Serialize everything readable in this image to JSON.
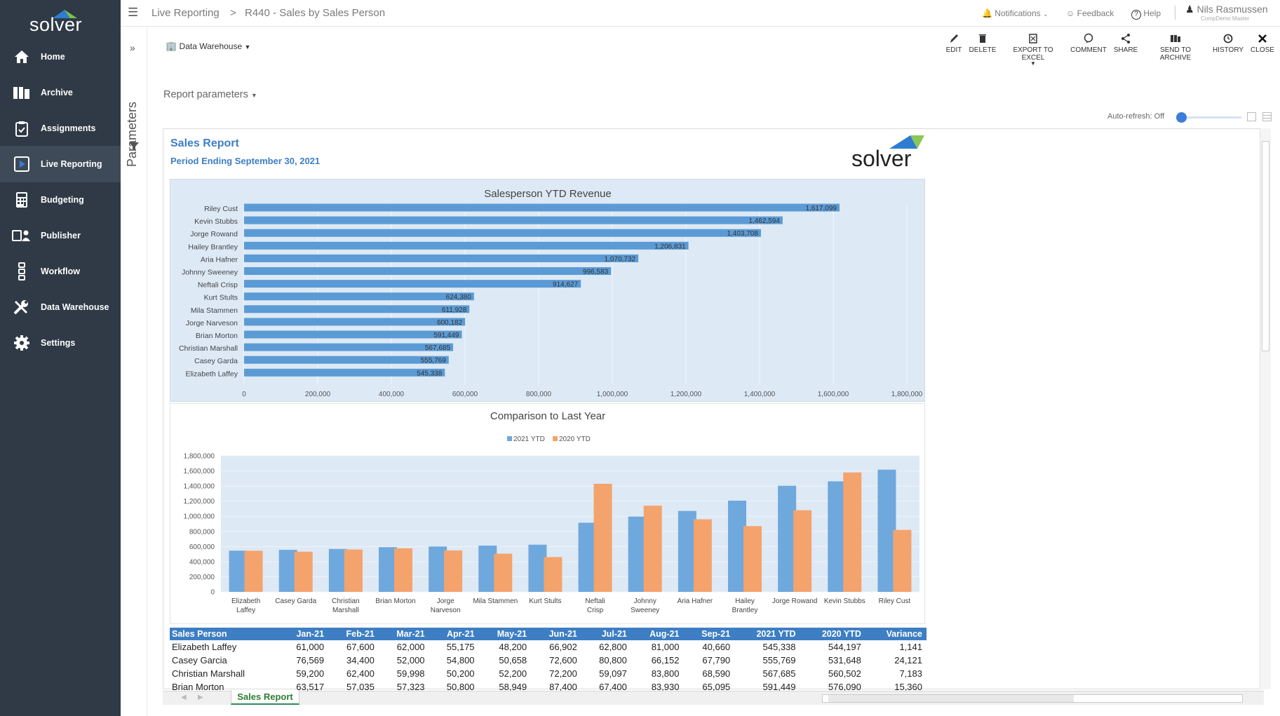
{
  "sidebar": {
    "brand": "solver",
    "items": [
      {
        "label": "Home",
        "icon": "home-icon",
        "active": false
      },
      {
        "label": "Archive",
        "icon": "archive-icon",
        "active": false
      },
      {
        "label": "Assignments",
        "icon": "clipboard-icon",
        "active": false
      },
      {
        "label": "Live Reporting",
        "icon": "live-reporting-icon",
        "active": true
      },
      {
        "label": "Budgeting",
        "icon": "calculator-icon",
        "active": false
      },
      {
        "label": "Publisher",
        "icon": "publisher-icon",
        "active": false
      },
      {
        "label": "Workflow",
        "icon": "workflow-icon",
        "active": false
      },
      {
        "label": "Data Warehouse",
        "icon": "tools-icon",
        "active": false
      },
      {
        "label": "Settings",
        "icon": "gear-icon",
        "active": false
      }
    ]
  },
  "topbar": {
    "breadcrumb_root": "Live Reporting",
    "breadcrumb_sep": ">",
    "breadcrumb_current": "R440 - Sales by Sales Person",
    "notifications": "Notifications",
    "feedback": "Feedback",
    "help": "Help",
    "user_name": "Nils Rasmussen",
    "user_sub": "CompDemo Master"
  },
  "params": {
    "label": "Parameters",
    "datasource": "Data Warehouse",
    "report_parameters": "Report parameters",
    "autorefresh": "Auto-refresh: Off"
  },
  "toolbar": {
    "edit": "EDIT",
    "delete": "DELETE",
    "export": "EXPORT TO EXCEL",
    "comment": "COMMENT",
    "share": "SHARE",
    "archive": "SEND TO ARCHIVE",
    "history": "HISTORY",
    "close": "CLOSE"
  },
  "report": {
    "title": "Sales Report",
    "period": "Period Ending September 30, 2021",
    "logo_text": "solver",
    "sheet_tab": "Sales Report"
  },
  "chart_data": [
    {
      "type": "bar",
      "orientation": "horizontal",
      "title": "Salesperson YTD Revenue",
      "categories": [
        "Riley Cust",
        "Kevin Stubbs",
        "Jorge Rowand",
        "Hailey Brantley",
        "Aria Hafner",
        "Johnny Sweeney",
        "Neftali Crisp",
        "Kurt Stults",
        "Mila Stammen",
        "Jorge Narveson",
        "Brian Morton",
        "Christian Marshall",
        "Casey Garda",
        "Elizabeth Laffey"
      ],
      "values": [
        1617099,
        1462594,
        1403708,
        1206831,
        1070732,
        996583,
        914627,
        624380,
        611928,
        600182,
        591449,
        567685,
        555769,
        545338
      ],
      "value_labels": [
        "1,617,099",
        "1,462,594",
        "1,403,708",
        "1,206,831",
        "1,070,732",
        "996,583",
        "914,627",
        "624,380",
        "611,928",
        "600,182",
        "591,449",
        "567,685",
        "555,769",
        "545,338"
      ],
      "xlim": [
        0,
        1800000
      ],
      "xticks": [
        "0",
        "200,000",
        "400,000",
        "600,000",
        "800,000",
        "1,000,000",
        "1,200,000",
        "1,400,000",
        "1,600,000",
        "1,800,000"
      ],
      "colors": {
        "bar": "#5b9bd5"
      }
    },
    {
      "type": "bar",
      "title": "Comparison to Last Year",
      "categories": [
        "Elizabeth Laffey",
        "Casey Garda",
        "Christian Marshall",
        "Brian Morton",
        "Jorge Narveson",
        "Mila Stammen",
        "Kurt Stults",
        "Neftali Crisp",
        "Johnny Sweeney",
        "Aria Hafner",
        "Hailey Brantley",
        "Jorge Rowand",
        "Kevin Stubbs",
        "Riley Cust"
      ],
      "series": [
        {
          "name": "2021 YTD",
          "color": "#6fa8dc",
          "values": [
            545338,
            555769,
            567685,
            591449,
            600182,
            611928,
            624380,
            914627,
            996583,
            1070732,
            1206831,
            1403708,
            1462594,
            1617099
          ]
        },
        {
          "name": "2020 YTD",
          "color": "#f4a36c",
          "values": [
            544197,
            531648,
            560502,
            576090,
            548000,
            505000,
            460000,
            1430000,
            1140000,
            960000,
            870000,
            1080000,
            1580000,
            820000
          ]
        }
      ],
      "ylim": [
        0,
        1800000
      ],
      "yticks": [
        "0",
        "200,000",
        "400,000",
        "600,000",
        "800,000",
        "1,000,000",
        "1,200,000",
        "1,400,000",
        "1,600,000",
        "1,800,000"
      ],
      "legend": "top-center"
    }
  ],
  "table": {
    "headers": [
      "Sales Person",
      "Jan-21",
      "Feb-21",
      "Mar-21",
      "Apr-21",
      "May-21",
      "Jun-21",
      "Jul-21",
      "Aug-21",
      "Sep-21",
      "2021 YTD",
      "2020 YTD",
      "Variance"
    ],
    "rows": [
      [
        "Elizabeth Laffey",
        "61,000",
        "67,600",
        "62,000",
        "55,175",
        "48,200",
        "66,902",
        "62,800",
        "81,000",
        "40,660",
        "545,338",
        "544,197",
        "1,141"
      ],
      [
        "Casey Garcia",
        "76,569",
        "34,400",
        "52,000",
        "54,800",
        "50,658",
        "72,600",
        "80,800",
        "66,152",
        "67,790",
        "555,769",
        "531,648",
        "24,121"
      ],
      [
        "Christian Marshall",
        "59,200",
        "62,400",
        "59,998",
        "50,200",
        "52,200",
        "72,200",
        "59,097",
        "83,800",
        "68,590",
        "567,685",
        "560,502",
        "7,183"
      ],
      [
        "Brian Morton",
        "63,517",
        "57,035",
        "57,323",
        "50,800",
        "58,949",
        "87,400",
        "67,400",
        "83,930",
        "65,095",
        "591,449",
        "576,090",
        "15,360"
      ]
    ]
  }
}
